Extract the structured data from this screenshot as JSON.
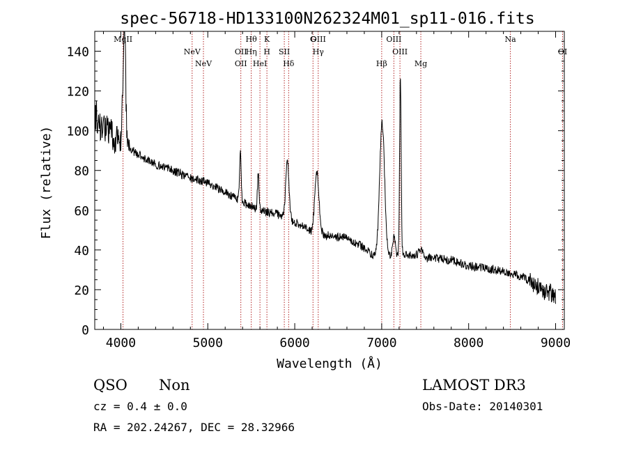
{
  "chart_data": {
    "type": "line",
    "title": "spec-56718-HD133100N262324M01_sp11-016.fits",
    "xlabel": "Wavelength (Å)",
    "ylabel": "Flux (relative)",
    "xlim": [
      3700,
      9100
    ],
    "ylim": [
      0,
      150
    ],
    "xticks": [
      4000,
      5000,
      6000,
      7000,
      8000,
      9000
    ],
    "yticks": [
      0,
      20,
      40,
      60,
      80,
      100,
      120,
      140
    ],
    "series": [
      {
        "name": "flux",
        "continuum": [
          [
            3700,
            108
          ],
          [
            3800,
            101
          ],
          [
            3900,
            97
          ],
          [
            4000,
            94
          ],
          [
            4100,
            91
          ],
          [
            4200,
            88
          ],
          [
            4400,
            83
          ],
          [
            4600,
            80
          ],
          [
            4800,
            76
          ],
          [
            5000,
            74
          ],
          [
            5200,
            69
          ],
          [
            5400,
            64
          ],
          [
            5600,
            60
          ],
          [
            5800,
            58
          ],
          [
            6000,
            54
          ],
          [
            6200,
            49
          ],
          [
            6400,
            47
          ],
          [
            6600,
            46
          ],
          [
            6800,
            41
          ],
          [
            6900,
            37
          ],
          [
            7000,
            38
          ],
          [
            7100,
            37
          ],
          [
            7300,
            38
          ],
          [
            7500,
            36
          ],
          [
            7800,
            35
          ],
          [
            8000,
            32
          ],
          [
            8300,
            30
          ],
          [
            8600,
            27
          ],
          [
            8800,
            22
          ],
          [
            9000,
            16
          ]
        ],
        "emission_lines": [
          {
            "x": 4040,
            "height": 60,
            "width": 15
          },
          {
            "x": 5375,
            "height": 25,
            "width": 9
          },
          {
            "x": 5580,
            "height": 18,
            "width": 9
          },
          {
            "x": 5915,
            "height": 30,
            "width": 18
          },
          {
            "x": 6255,
            "height": 30,
            "width": 24
          },
          {
            "x": 7005,
            "height": 66,
            "width": 28
          },
          {
            "x": 7140,
            "height": 10,
            "width": 14
          },
          {
            "x": 7215,
            "height": 90,
            "width": 9
          },
          {
            "x": 7450,
            "height": 4,
            "width": 25
          }
        ]
      }
    ],
    "spectral_lines": [
      {
        "x": 4025,
        "labels": [
          "MgII"
        ]
      },
      {
        "x": 4820,
        "labels": [
          "NeV"
        ]
      },
      {
        "x": 4950,
        "labels": [
          "NeV"
        ]
      },
      {
        "x": 5380,
        "labels": [
          "OII",
          "OII"
        ]
      },
      {
        "x": 5500,
        "labels": [
          "Hθ",
          "Hη"
        ]
      },
      {
        "x": 5600,
        "labels": [
          "HeI"
        ]
      },
      {
        "x": 5680,
        "labels": [
          "K",
          "H"
        ]
      },
      {
        "x": 5880,
        "labels": [
          "SII"
        ]
      },
      {
        "x": 5930,
        "labels": [
          "Hδ"
        ]
      },
      {
        "x": 6210,
        "labels": [
          "G"
        ]
      },
      {
        "x": 6270,
        "labels": [
          "OIII",
          "Hγ"
        ]
      },
      {
        "x": 7000,
        "labels": [
          "Hβ"
        ]
      },
      {
        "x": 7140,
        "labels": [
          "OIII"
        ]
      },
      {
        "x": 7210,
        "labels": [
          "OIII"
        ]
      },
      {
        "x": 7450,
        "labels": [
          "Mg"
        ]
      },
      {
        "x": 8480,
        "labels": [
          "Na"
        ]
      },
      {
        "x": 9080,
        "labels": [
          "OI"
        ]
      }
    ]
  },
  "info": {
    "class": "QSO",
    "subclass": "Non",
    "cz": "cz = 0.4 ± 0.0",
    "coords": "RA = 202.24267, DEC =  28.32966",
    "survey": "LAMOST DR3",
    "obs_date": "Obs-Date: 20140301"
  },
  "colors": {
    "line": "#000000",
    "marker": "#b22222"
  }
}
